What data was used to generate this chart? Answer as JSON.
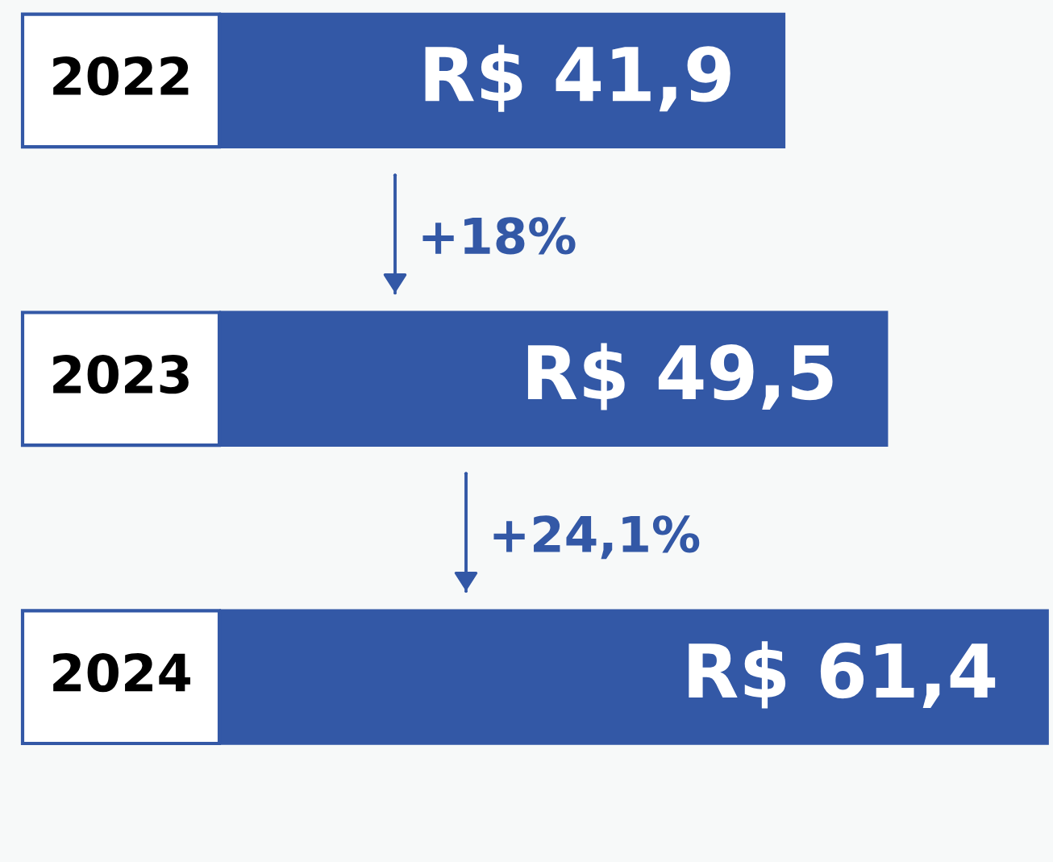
{
  "chart_data": {
    "type": "bar",
    "orientation": "horizontal",
    "categories": [
      "2022",
      "2023",
      "2024"
    ],
    "values": [
      41.9,
      49.5,
      61.4
    ],
    "value_labels": [
      "R$ 41,9",
      "R$ 49,5",
      "R$ 61,4"
    ],
    "color": "#3358a6",
    "annotations": [
      "+18%",
      "+24,1%"
    ]
  }
}
